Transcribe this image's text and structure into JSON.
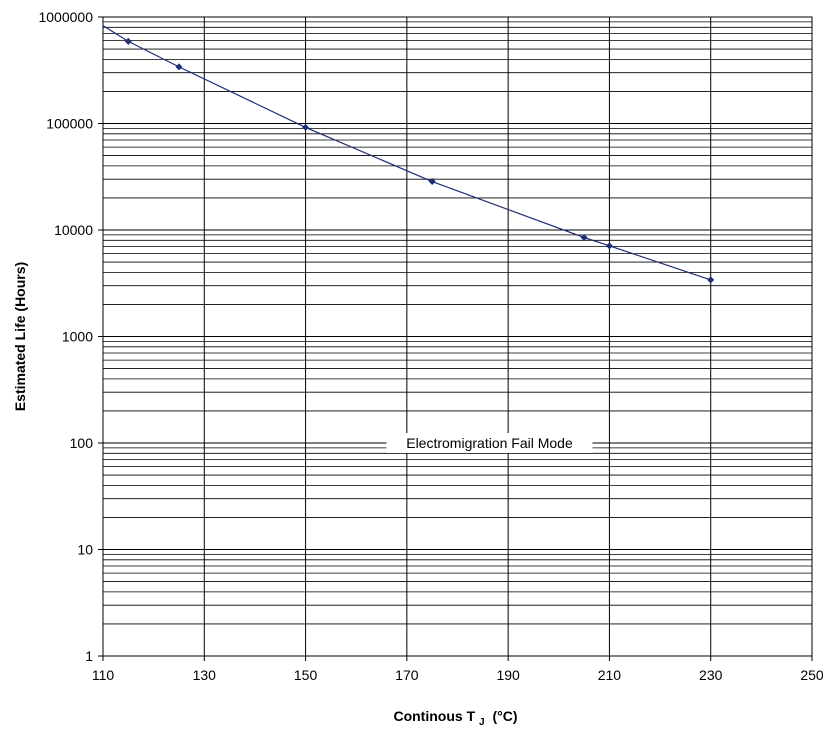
{
  "chart_data": {
    "type": "line",
    "xlabel_main": "Continous T",
    "xlabel_sub": "J",
    "xlabel_unit": "(°C)",
    "ylabel": "Estimated Life (Hours)",
    "xlim": [
      110,
      250
    ],
    "ylim": [
      1,
      1000000
    ],
    "yscale": "log",
    "grid": true,
    "x_ticks": [
      110,
      130,
      150,
      170,
      190,
      210,
      230,
      250
    ],
    "y_ticks": [
      1,
      10,
      100,
      1000,
      10000,
      100000,
      1000000
    ],
    "y_tick_labels": [
      "1",
      "10",
      "100",
      "1000",
      "10000",
      "100000",
      "1000000"
    ],
    "annotation": "Electromigration Fail Mode",
    "series": [
      {
        "x": [
          115,
          125,
          150,
          175,
          205,
          210,
          230
        ],
        "y": [
          590000,
          340000,
          92000,
          28500,
          8500,
          7100,
          3400
        ]
      }
    ],
    "line_extension": {
      "x": [
        110,
        115
      ],
      "y": [
        830000,
        590000
      ]
    },
    "colors": {
      "series": "#1f2d7a",
      "grid": "#000000",
      "frame": "#000000"
    }
  }
}
